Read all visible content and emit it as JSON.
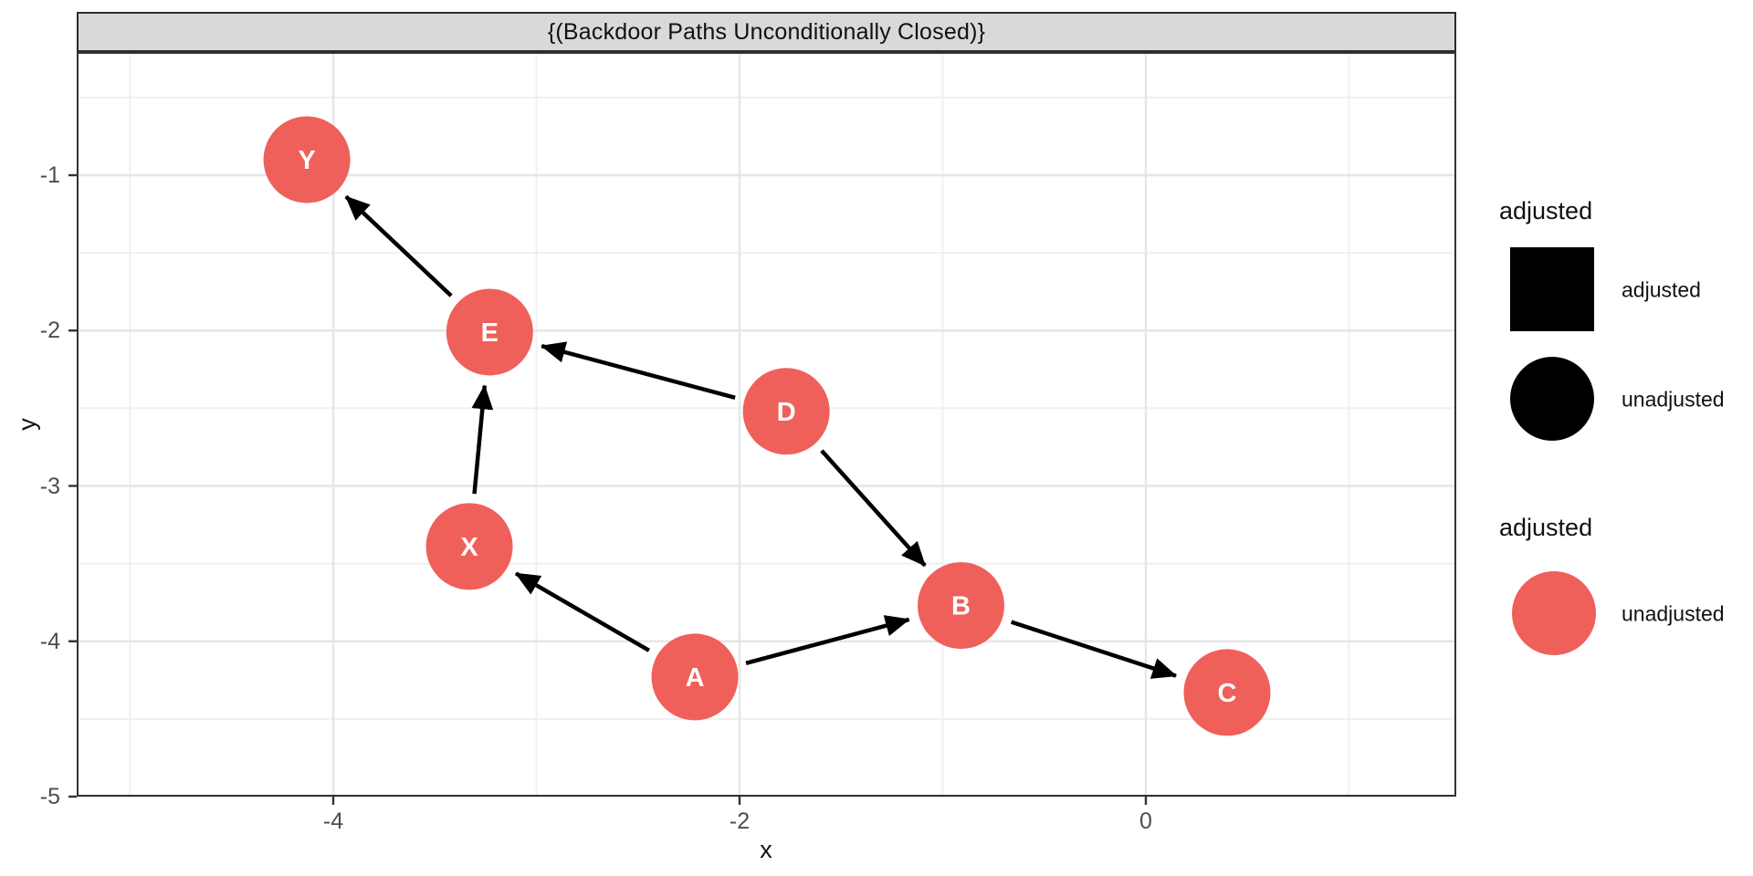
{
  "strip": {
    "title": "{(Backdoor Paths Unconditionally Closed)}"
  },
  "axes": {
    "x": {
      "title": "x",
      "major_ticks": [
        -4,
        -2,
        0
      ],
      "minor_ticks": [
        -5,
        -3,
        -1,
        1
      ],
      "range": [
        -5.26,
        1.53
      ]
    },
    "y": {
      "title": "y",
      "major_ticks": [
        -1,
        -2,
        -3,
        -4,
        -5
      ],
      "minor_ticks": [
        -0.5,
        -1.5,
        -2.5,
        -3.5,
        -4.5
      ],
      "range": [
        -5.0,
        -0.21
      ]
    }
  },
  "legends": [
    {
      "title": "adjusted",
      "items": [
        {
          "shape": "square",
          "color": "#000000",
          "label": "adjusted"
        },
        {
          "shape": "circle",
          "color": "#000000",
          "label": "unadjusted"
        }
      ]
    },
    {
      "title": "adjusted",
      "items": [
        {
          "shape": "circle",
          "color": "#EF605B",
          "label": "unadjusted"
        }
      ]
    }
  ],
  "chart_data": {
    "type": "scatter",
    "subtype": "directed-acyclic-graph",
    "title": "{(Backdoor Paths Unconditionally Closed)}",
    "xlabel": "x",
    "ylabel": "y",
    "xlim": [
      -5.26,
      1.53
    ],
    "ylim": [
      -5.0,
      -0.21
    ],
    "grid": "on",
    "legend_position": "right",
    "nodes": [
      {
        "id": "Y",
        "x": -4.13,
        "y": -0.9,
        "status": "unadjusted"
      },
      {
        "id": "E",
        "x": -3.23,
        "y": -2.01,
        "status": "unadjusted"
      },
      {
        "id": "D",
        "x": -1.77,
        "y": -2.52,
        "status": "unadjusted"
      },
      {
        "id": "X",
        "x": -3.33,
        "y": -3.39,
        "status": "unadjusted"
      },
      {
        "id": "B",
        "x": -0.91,
        "y": -3.77,
        "status": "unadjusted"
      },
      {
        "id": "A",
        "x": -2.22,
        "y": -4.23,
        "status": "unadjusted"
      },
      {
        "id": "C",
        "x": 0.4,
        "y": -4.33,
        "status": "unadjusted"
      }
    ],
    "edges": [
      {
        "from": "A",
        "to": "B"
      },
      {
        "from": "A",
        "to": "X"
      },
      {
        "from": "B",
        "to": "C"
      },
      {
        "from": "D",
        "to": "B"
      },
      {
        "from": "D",
        "to": "E"
      },
      {
        "from": "E",
        "to": "Y"
      },
      {
        "from": "X",
        "to": "E"
      }
    ]
  },
  "colors": {
    "node_fill": "#EF605B",
    "node_text": "#FFFFFF",
    "edge": "#000000",
    "strip_bg": "#D9D9D9",
    "panel_border": "#333333",
    "grid_major": "#E6E6E6",
    "grid_minor": "#F0F0F0",
    "axis_text": "#4D4D4D",
    "tick_mark": "#333333"
  }
}
